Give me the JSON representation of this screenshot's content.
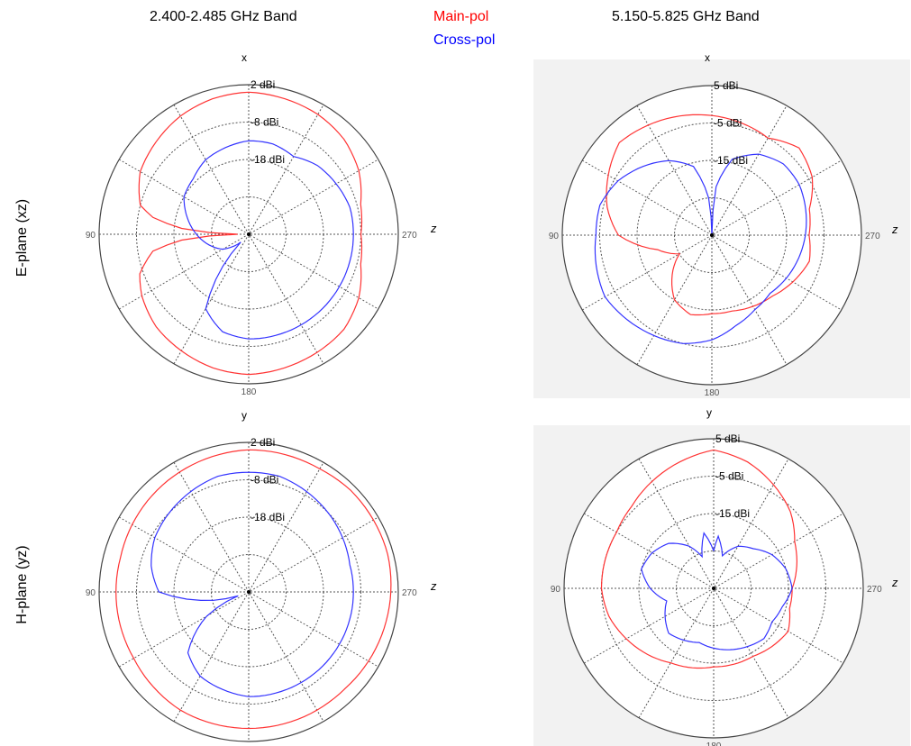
{
  "header": {
    "col1": "2.400-2.485 GHz Band",
    "col2": "5.150-5.825 GHz  Band",
    "legend_main": "Main-pol",
    "legend_cross": "Cross-pol"
  },
  "rows": {
    "row1": "E-plane (xz)",
    "row2": "H-plane (yz)"
  },
  "colors": {
    "main": "#ff3333",
    "cross": "#3333ff",
    "grid": "#555555"
  },
  "chart_data": [
    {
      "type": "polar",
      "panel": "E-plane 2.4 GHz",
      "top_label": "x",
      "side_label": "z",
      "angle_labels": [
        "90",
        "270",
        "180"
      ],
      "ring_labels": [
        "2 dBi",
        "-8 dBi",
        "-18 dBi"
      ],
      "rlim": [
        -38,
        2
      ],
      "angle_axis": "degrees measured from top, increasing counter-clockwise",
      "series": [
        {
          "name": "Main-pol",
          "color": "#ff3333",
          "theta": [
            0,
            15,
            30,
            45,
            60,
            75,
            80,
            85,
            90,
            95,
            100,
            110,
            120,
            135,
            150,
            165,
            180,
            195,
            210,
            225,
            240,
            255,
            270,
            285,
            300,
            315,
            330,
            345,
            360
          ],
          "r": [
            0,
            -0.5,
            -1.5,
            -3,
            -4.5,
            -8,
            -12,
            -20,
            -35,
            -20,
            -12,
            -7,
            -5,
            -3,
            -2,
            -1,
            -0.5,
            -1,
            -1.5,
            -2,
            -4,
            -7,
            -8,
            -7,
            -4,
            -2,
            -1,
            -0.5,
            0
          ]
        },
        {
          "name": "Cross-pol",
          "color": "#3333ff",
          "theta": [
            0,
            15,
            30,
            45,
            60,
            75,
            90,
            105,
            120,
            135,
            150,
            165,
            180,
            195,
            210,
            225,
            240,
            255,
            270,
            285,
            300,
            315,
            330,
            345,
            360
          ],
          "r": [
            -13,
            -14,
            -15,
            -17,
            -18,
            -21,
            -24,
            -27,
            -30,
            -35,
            -15,
            -11,
            -10,
            -10,
            -10,
            -10,
            -10,
            -10,
            -10,
            -10,
            -11,
            -12,
            -14,
            -13,
            -13
          ]
        }
      ]
    },
    {
      "type": "polar",
      "panel": "E-plane 5.8 GHz",
      "top_label": "x",
      "side_label": "z",
      "angle_labels": [
        "90",
        "270",
        "180"
      ],
      "ring_labels": [
        "5 dBi",
        "-5 dBi",
        "-15 dBi"
      ],
      "rlim": [
        -35,
        5
      ],
      "angle_axis": "degrees measured from top, increasing counter-clockwise",
      "series": [
        {
          "name": "Main-pol",
          "color": "#ff3333",
          "theta": [
            0,
            15,
            30,
            45,
            60,
            75,
            90,
            105,
            120,
            135,
            150,
            165,
            180,
            195,
            210,
            225,
            240,
            255,
            270,
            285,
            300,
            315,
            330,
            345,
            360
          ],
          "r": [
            -3,
            -2,
            -1,
            0,
            -3,
            -6,
            -10,
            -20,
            -25,
            -20,
            -15,
            -13,
            -14,
            -14,
            -13,
            -12,
            -10,
            -8,
            -9,
            -8,
            -4,
            -2,
            -5,
            -4,
            -3
          ]
        },
        {
          "name": "Cross-pol",
          "color": "#3333ff",
          "theta": [
            0,
            5,
            15,
            30,
            45,
            60,
            75,
            90,
            105,
            120,
            135,
            150,
            165,
            180,
            195,
            210,
            225,
            240,
            255,
            270,
            285,
            300,
            315,
            330,
            345,
            355,
            360
          ],
          "r": [
            -35,
            -25,
            -16,
            -12,
            -9,
            -6,
            -4,
            -4,
            -3,
            -2,
            -3,
            -4,
            -5,
            -7,
            -10,
            -12,
            -13,
            -12,
            -11,
            -10,
            -9,
            -8,
            -8,
            -10,
            -14,
            -22,
            -35
          ]
        }
      ]
    },
    {
      "type": "polar",
      "panel": "H-plane 2.4 GHz",
      "top_label": "y",
      "side_label": "z",
      "angle_labels": [
        "90",
        "270",
        "180"
      ],
      "ring_labels": [
        "2 dBi",
        "-8 dBi",
        "-18 dBi"
      ],
      "rlim": [
        -38,
        2
      ],
      "angle_axis": "degrees measured from top, increasing counter-clockwise",
      "series": [
        {
          "name": "Main-pol",
          "color": "#ff3333",
          "theta": [
            0,
            15,
            30,
            45,
            60,
            75,
            90,
            105,
            120,
            135,
            150,
            165,
            180,
            195,
            210,
            225,
            240,
            255,
            270,
            285,
            300,
            315,
            330,
            345,
            360
          ],
          "r": [
            0,
            -0.5,
            -1,
            -1.5,
            -2,
            -2.5,
            -2.5,
            -2.5,
            -2.5,
            -2,
            -1.5,
            -1.5,
            -1.5,
            -1.5,
            -1.5,
            -1.5,
            -1,
            -0.5,
            0,
            0.5,
            0.5,
            0.5,
            0,
            0,
            0
          ]
        },
        {
          "name": "Cross-pol",
          "color": "#3333ff",
          "theta": [
            0,
            15,
            30,
            45,
            60,
            75,
            90,
            100,
            110,
            120,
            135,
            150,
            165,
            180,
            195,
            210,
            225,
            240,
            255,
            270,
            285,
            300,
            315,
            330,
            345,
            360
          ],
          "r": [
            -6,
            -6,
            -7,
            -8,
            -9,
            -11,
            -14,
            -25,
            -35,
            -25,
            -15,
            -12,
            -11,
            -10,
            -10,
            -10,
            -10,
            -10,
            -10,
            -10,
            -10,
            -9,
            -8,
            -7,
            -6,
            -6
          ]
        }
      ]
    },
    {
      "type": "polar",
      "panel": "H-plane 5.8 GHz",
      "top_label": "y",
      "side_label": "z",
      "angle_labels": [
        "90",
        "270",
        "180"
      ],
      "ring_labels": [
        "5 dBi",
        "-5 dBi",
        "-15 dBi"
      ],
      "rlim": [
        -35,
        5
      ],
      "angle_axis": "degrees measured from top, increasing counter-clockwise",
      "series": [
        {
          "name": "Main-pol",
          "color": "#ff3333",
          "theta": [
            0,
            15,
            30,
            45,
            60,
            75,
            90,
            105,
            120,
            135,
            150,
            165,
            180,
            195,
            210,
            225,
            240,
            255,
            270,
            285,
            300,
            315,
            330,
            345,
            360
          ],
          "r": [
            2,
            0,
            -2,
            -4,
            -5,
            -5,
            -5,
            -6,
            -8,
            -10,
            -12,
            -13,
            -14,
            -14,
            -14,
            -13,
            -12,
            -14,
            -14,
            -12,
            -10,
            -6,
            -3,
            0,
            2
          ]
        },
        {
          "name": "Cross-pol",
          "color": "#3333ff",
          "theta": [
            0,
            10,
            20,
            30,
            45,
            60,
            75,
            90,
            105,
            120,
            135,
            150,
            165,
            180,
            195,
            210,
            225,
            240,
            255,
            270,
            285,
            300,
            315,
            330,
            345,
            355,
            360
          ],
          "r": [
            -25,
            -20,
            -26,
            -22,
            -18,
            -16,
            -15,
            -18,
            -22,
            -20,
            -18,
            -19,
            -20,
            -19,
            -18,
            -17,
            -16,
            -17,
            -16,
            -14,
            -15,
            -17,
            -20,
            -22,
            -26,
            -21,
            -25
          ]
        }
      ]
    }
  ]
}
